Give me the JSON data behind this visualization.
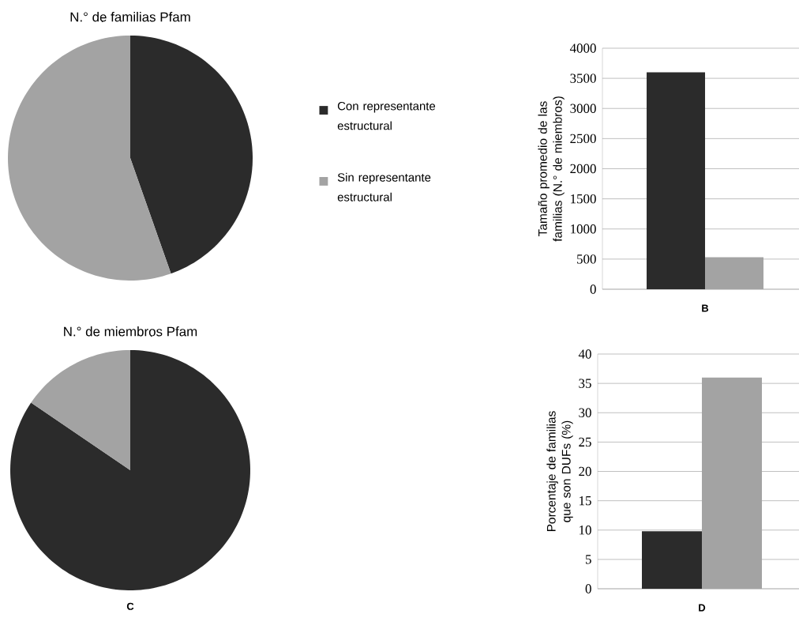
{
  "chart_data": [
    {
      "type": "pie",
      "title": "N.° de familias Pfam",
      "categories": [
        "Con representante estructural",
        "Sin representante estructural"
      ],
      "values": [
        44.6,
        55.4
      ],
      "colors": [
        "#2b2b2b",
        "#a3a3a3"
      ],
      "legend": "right"
    },
    {
      "type": "bar",
      "categories": [
        null,
        null
      ],
      "values": [
        3600,
        530
      ],
      "colors": [
        "#2b2b2b",
        "#a3a3a3"
      ],
      "ylabel": "Tamaño promedio de las familias (N.° de miembros)",
      "ylim": [
        0,
        4000
      ],
      "yticks": [
        0,
        500,
        1000,
        1500,
        2000,
        2500,
        3000,
        3500,
        4000
      ],
      "grid": "y",
      "annotations": [
        "B"
      ]
    },
    {
      "type": "pie",
      "title": "N.° de miembros Pfam",
      "categories": [
        null,
        null
      ],
      "values": [
        84.5,
        15.5
      ],
      "colors": [
        "#2b2b2b",
        "#a3a3a3"
      ],
      "annotations": [
        "C"
      ]
    },
    {
      "type": "bar",
      "categories": [
        null,
        null
      ],
      "values": [
        9.8,
        36
      ],
      "colors": [
        "#2b2b2b",
        "#a3a3a3"
      ],
      "ylabel": "Porcentaje de familias que son DUFs (%)",
      "ylim": [
        0,
        40
      ],
      "yticks": [
        0,
        5,
        10,
        15,
        20,
        25,
        30,
        35,
        40
      ],
      "grid": "y",
      "annotations": [
        "D"
      ]
    }
  ]
}
